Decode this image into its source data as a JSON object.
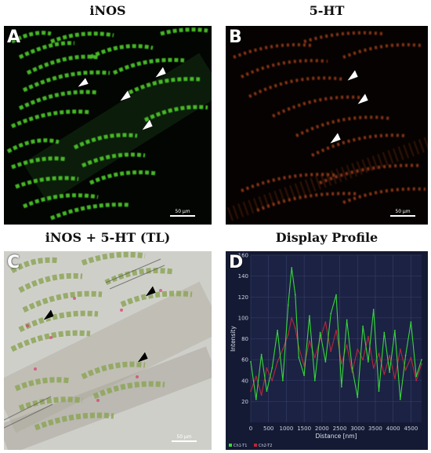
{
  "panels": {
    "a": {
      "title": "iNOS",
      "label": "A",
      "scale": "50 µm"
    },
    "b": {
      "title": "5-HT",
      "label": "B",
      "scale": "50 µm"
    },
    "c": {
      "title": "iNOS + 5-HT (TL)",
      "label": "C",
      "scale": "50 µm"
    },
    "d": {
      "title": "Display Profile",
      "label": "D"
    }
  },
  "chart_data": {
    "type": "line",
    "title": "Display Profile",
    "xlabel": "Distance [nm]",
    "ylabel": "Intensity",
    "xlim": [
      0,
      4800
    ],
    "ylim": [
      0,
      160
    ],
    "xticks": [
      0,
      500,
      1000,
      1500,
      2000,
      2500,
      3000,
      3500,
      4000,
      4500
    ],
    "yticks": [
      20,
      40,
      60,
      80,
      100,
      120,
      140,
      160
    ],
    "grid": true,
    "legend": "bottom-left",
    "series": [
      {
        "name": "Ch1-T1",
        "color": "#37d83a",
        "x": [
          0,
          150,
          300,
          450,
          600,
          750,
          900,
          1050,
          1150,
          1250,
          1350,
          1500,
          1650,
          1800,
          1950,
          2100,
          2250,
          2400,
          2550,
          2700,
          2850,
          3000,
          3150,
          3300,
          3450,
          3600,
          3750,
          3900,
          4050,
          4200,
          4350,
          4500,
          4650,
          4800
        ],
        "y": [
          58,
          22,
          65,
          30,
          52,
          88,
          40,
          112,
          148,
          122,
          62,
          45,
          102,
          40,
          86,
          58,
          104,
          122,
          34,
          98,
          52,
          24,
          92,
          58,
          108,
          30,
          86,
          48,
          88,
          22,
          64,
          96,
          44,
          60
        ]
      },
      {
        "name": "Ch2-T2",
        "color": "#b8283a",
        "x": [
          0,
          150,
          300,
          450,
          600,
          750,
          900,
          1050,
          1150,
          1250,
          1350,
          1500,
          1650,
          1800,
          1950,
          2100,
          2250,
          2400,
          2550,
          2700,
          2850,
          3000,
          3150,
          3300,
          3450,
          3600,
          3750,
          3900,
          4050,
          4200,
          4350,
          4500,
          4650,
          4800
        ],
        "y": [
          30,
          44,
          26,
          52,
          40,
          58,
          70,
          84,
          100,
          90,
          72,
          54,
          78,
          62,
          80,
          96,
          68,
          88,
          56,
          74,
          48,
          70,
          60,
          82,
          52,
          66,
          46,
          64,
          42,
          70,
          50,
          62,
          40,
          56
        ]
      }
    ]
  }
}
